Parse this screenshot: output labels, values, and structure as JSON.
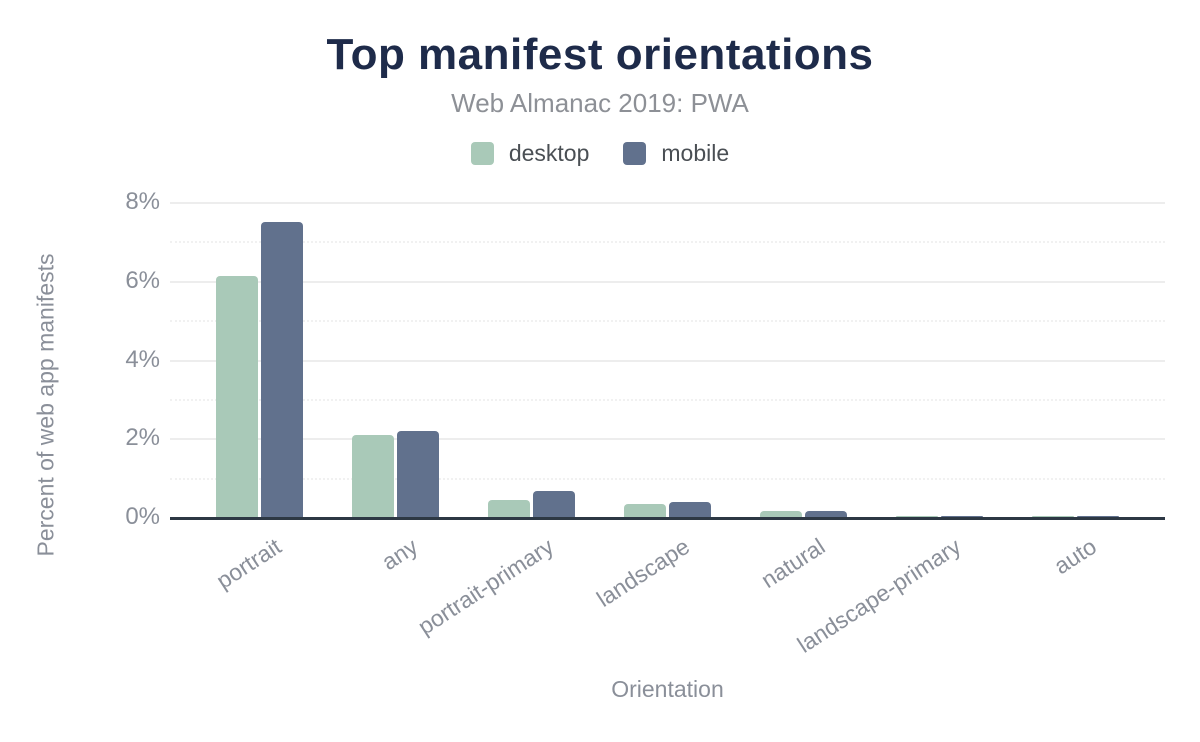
{
  "chart": {
    "title": "Top manifest orientations",
    "subtitle": "Web Almanac 2019: PWA",
    "xlabel": "Orientation",
    "ylabel": "Percent of web app manifests"
  },
  "legend": {
    "items": [
      {
        "label": "desktop",
        "color": "#a9c9b8"
      },
      {
        "label": "mobile",
        "color": "#61718d"
      }
    ]
  },
  "chart_data": {
    "type": "bar",
    "title": "Top manifest orientations",
    "subtitle": "Web Almanac 2019: PWA",
    "xlabel": "Orientation",
    "ylabel": "Percent of web app manifests",
    "categories": [
      "portrait",
      "any",
      "portrait-primary",
      "landscape",
      "natural",
      "landscape-primary",
      "auto"
    ],
    "series": [
      {
        "name": "desktop",
        "color": "#a9c9b8",
        "values": [
          6.13,
          2.09,
          0.42,
          0.33,
          0.16,
          0.03,
          0.03
        ]
      },
      {
        "name": "mobile",
        "color": "#61718d",
        "values": [
          7.49,
          2.19,
          0.67,
          0.38,
          0.15,
          0.03,
          0.03
        ]
      }
    ],
    "ylim": [
      0,
      8
    ],
    "yticks": [
      {
        "value": 0,
        "label": "0%"
      },
      {
        "value": 2,
        "label": "2%"
      },
      {
        "value": 4,
        "label": "4%"
      },
      {
        "value": 6,
        "label": "6%"
      },
      {
        "value": 8,
        "label": "8%"
      }
    ],
    "minor_gridlines": [
      1,
      3,
      5,
      7
    ],
    "grid": true,
    "legend_position": "top"
  },
  "colors": {
    "title": "#1e2b4a",
    "subtitle": "#8d9096",
    "axis_text": "#8a8f99",
    "legend_text": "#4a4f54",
    "axis_line": "#2d3844",
    "gridline_major": "#ededed",
    "gridline_minor": "#f1f1f1",
    "background": "#ffffff"
  }
}
